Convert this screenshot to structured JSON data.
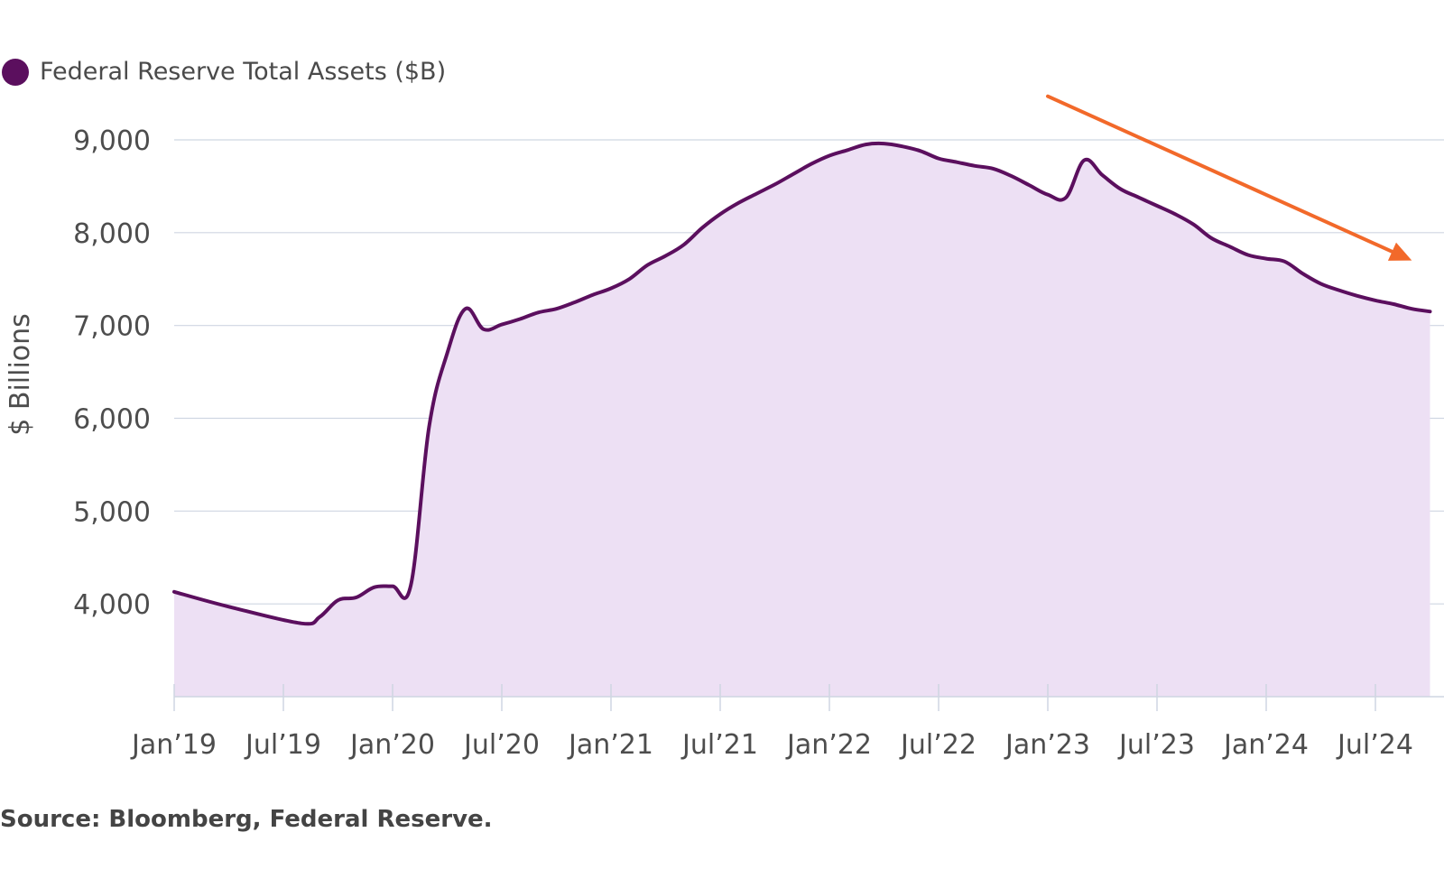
{
  "legend": {
    "series_label": "Federal Reserve Total Assets ($B)"
  },
  "source": "Source: Bloomberg, Federal Reserve.",
  "colors": {
    "line": "#5b0f5e",
    "fill": "#ede0f4",
    "arrow": "#f2692a",
    "grid": "#cfd6e2",
    "text": "#4d4d4d"
  },
  "chart_data": {
    "type": "area",
    "title": "",
    "xlabel": "",
    "ylabel": "$ Billions",
    "ylim": [
      3000,
      9000
    ],
    "yticks": [
      4000,
      5000,
      6000,
      7000,
      8000,
      9000
    ],
    "ytick_labels": [
      "4,000",
      "5,000",
      "6,000",
      "7,000",
      "8,000",
      "9,000"
    ],
    "xlim": [
      "2019-01",
      "2024-10"
    ],
    "xticks": [
      "2019-01",
      "2019-07",
      "2020-01",
      "2020-07",
      "2021-01",
      "2021-07",
      "2022-01",
      "2022-07",
      "2023-01",
      "2023-07",
      "2024-01",
      "2024-07"
    ],
    "xtick_labels": [
      "Jan’19",
      "Jul’19",
      "Jan’20",
      "Jul’20",
      "Jan’21",
      "Jul’21",
      "Jan’22",
      "Jul’22",
      "Jan’23",
      "Jul’23",
      "Jan’24",
      "Jul’24"
    ],
    "grid": true,
    "legend_position": "top-left",
    "series": [
      {
        "name": "Federal Reserve Total Assets ($B)",
        "x": [
          "2019-01",
          "2019-04",
          "2019-08",
          "2019-09",
          "2019-10",
          "2019-11",
          "2019-12",
          "2020-01",
          "2020-02",
          "2020-03",
          "2020-04",
          "2020-05",
          "2020-06",
          "2020-07",
          "2020-08",
          "2020-09",
          "2020-10",
          "2020-11",
          "2020-12",
          "2021-01",
          "2021-02",
          "2021-03",
          "2021-04",
          "2021-05",
          "2021-06",
          "2021-07",
          "2021-08",
          "2021-09",
          "2021-10",
          "2021-11",
          "2021-12",
          "2022-01",
          "2022-02",
          "2022-03",
          "2022-04",
          "2022-05",
          "2022-06",
          "2022-07",
          "2022-08",
          "2022-09",
          "2022-10",
          "2022-11",
          "2022-12",
          "2023-01",
          "2023-02",
          "2023-03",
          "2023-04",
          "2023-05",
          "2023-06",
          "2023-07",
          "2023-08",
          "2023-09",
          "2023-10",
          "2023-11",
          "2023-12",
          "2024-01",
          "2024-02",
          "2024-03",
          "2024-04",
          "2024-05",
          "2024-06",
          "2024-07",
          "2024-08",
          "2024-09",
          "2024-10"
        ],
        "values": [
          4130,
          3970,
          3790,
          3860,
          4040,
          4070,
          4180,
          4190,
          4200,
          5900,
          6700,
          7180,
          6960,
          7010,
          7070,
          7140,
          7180,
          7250,
          7330,
          7400,
          7500,
          7650,
          7750,
          7870,
          8050,
          8200,
          8320,
          8420,
          8520,
          8630,
          8740,
          8830,
          8890,
          8950,
          8960,
          8930,
          8880,
          8800,
          8760,
          8720,
          8690,
          8610,
          8510,
          8410,
          8380,
          8780,
          8620,
          8470,
          8380,
          8290,
          8200,
          8090,
          7940,
          7850,
          7760,
          7720,
          7690,
          7560,
          7450,
          7380,
          7320,
          7270,
          7230,
          7180,
          7150
        ]
      }
    ],
    "annotations": [
      {
        "type": "arrow",
        "description": "downward trend arrow",
        "from": [
          "2023-01",
          9470
        ],
        "to": [
          "2024-09",
          7700
        ]
      }
    ]
  }
}
